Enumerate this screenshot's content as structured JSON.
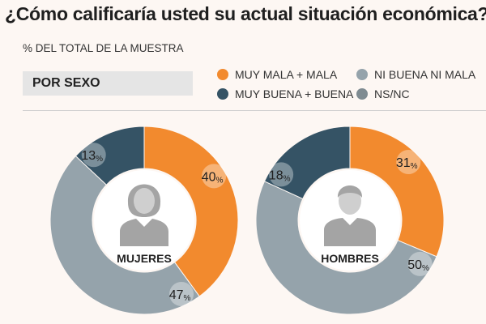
{
  "title": "¿Cómo calificaría usted su actual situación económica?",
  "subtitle": "% DEL TOTAL DE LA MUESTRA",
  "section_label": "POR SEXO",
  "legend": [
    {
      "label": "MUY MALA + MALA",
      "color": "#f28a2e"
    },
    {
      "label": "NI BUENA NI MALA",
      "color": "#95a3ab"
    },
    {
      "label": "MUY BUENA + BUENA",
      "color": "#355365"
    },
    {
      "label": "NS/NC",
      "color": "#7f8b91"
    }
  ],
  "chart_data": [
    {
      "type": "pie",
      "title": "MUJERES",
      "series": [
        {
          "name": "MUY MALA + MALA",
          "value": 40
        },
        {
          "name": "NI BUENA NI MALA",
          "value": 47
        },
        {
          "name": "MUY BUENA + BUENA",
          "value": 13
        }
      ],
      "label_suffix": "%"
    },
    {
      "type": "pie",
      "title": "HOMBRES",
      "series": [
        {
          "name": "MUY MALA + MALA",
          "value": 31
        },
        {
          "name": "NI BUENA NI MALA",
          "value": 50
        },
        {
          "name": "MUY BUENA + BUENA",
          "value": 18
        }
      ],
      "label_suffix": "%"
    }
  ]
}
